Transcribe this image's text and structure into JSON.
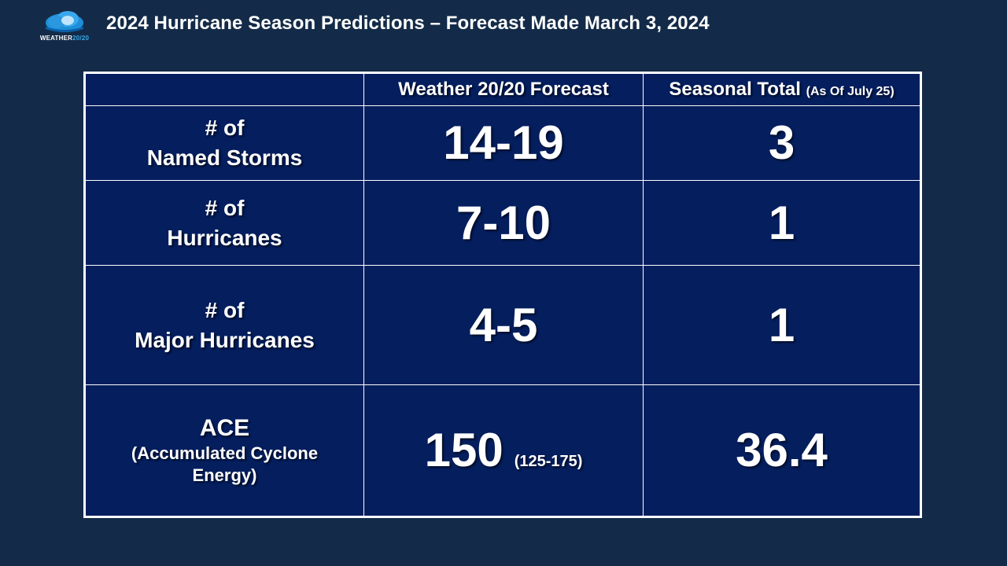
{
  "logo": {
    "word": "WEATHER",
    "number": "20/20",
    "colors": {
      "cloud_outer": "#1e8ed8",
      "cloud_inner": "#bfe4fb"
    }
  },
  "title": "2024 Hurricane Season Predictions – Forecast Made March 3, 2024",
  "table": {
    "headers": {
      "blank": "",
      "forecast": "Weather 20/20 Forecast",
      "seasonal": "Seasonal Total",
      "seasonal_note": "(As Of July 25)"
    },
    "rows": [
      {
        "label_line1": "# of",
        "label_line2": "Named Storms",
        "forecast": "14-19",
        "seasonal": "3"
      },
      {
        "label_line1": "# of",
        "label_line2": "Hurricanes",
        "forecast": "7-10",
        "seasonal": "1"
      },
      {
        "label_line1": "# of",
        "label_line2": "Major Hurricanes",
        "forecast": "4-5",
        "seasonal": "1"
      },
      {
        "label_line1": "ACE",
        "label_line2": "(Accumulated Cyclone",
        "label_line3": "Energy)",
        "forecast": "150",
        "forecast_range": "(125-175)",
        "seasonal": "36.4"
      }
    ]
  },
  "colors": {
    "background": "#132b48",
    "table_fill": "#041e5e",
    "border": "#ffffff",
    "text": "#ffffff"
  }
}
